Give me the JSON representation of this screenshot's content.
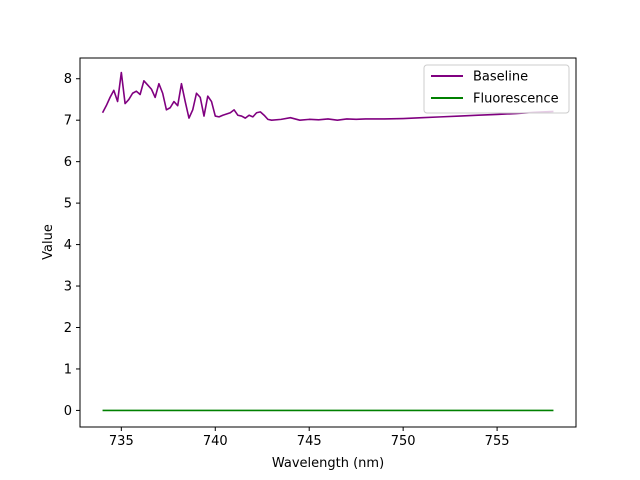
{
  "chart_data": {
    "type": "line",
    "xlabel": "Wavelength (nm)",
    "ylabel": "Value",
    "xlim": [
      732.8,
      759.2
    ],
    "ylim": [
      -0.4,
      8.5
    ],
    "x_ticks": [
      735,
      740,
      745,
      750,
      755
    ],
    "y_ticks": [
      0,
      1,
      2,
      3,
      4,
      5,
      6,
      7,
      8
    ],
    "grid": false,
    "legend_position": "top-right",
    "series": [
      {
        "name": "Baseline",
        "color": "#800080",
        "x": [
          734.0,
          734.2,
          734.4,
          734.6,
          734.8,
          735.0,
          735.2,
          735.4,
          735.6,
          735.8,
          736.0,
          736.2,
          736.4,
          736.6,
          736.8,
          737.0,
          737.2,
          737.4,
          737.6,
          737.8,
          738.0,
          738.2,
          738.4,
          738.6,
          738.8,
          739.0,
          739.2,
          739.4,
          739.6,
          739.8,
          740.0,
          740.2,
          740.4,
          740.6,
          740.8,
          741.0,
          741.2,
          741.4,
          741.6,
          741.8,
          742.0,
          742.2,
          742.4,
          742.6,
          742.8,
          743.0,
          743.5,
          744.0,
          744.5,
          745.0,
          745.5,
          746.0,
          746.5,
          747.0,
          747.5,
          748.0,
          749.0,
          750.0,
          751.0,
          752.0,
          753.0,
          754.0,
          755.0,
          756.0,
          757.0,
          758.0
        ],
        "y": [
          7.18,
          7.35,
          7.55,
          7.72,
          7.45,
          8.15,
          7.4,
          7.5,
          7.65,
          7.7,
          7.62,
          7.95,
          7.85,
          7.75,
          7.55,
          7.88,
          7.65,
          7.25,
          7.3,
          7.45,
          7.35,
          7.88,
          7.45,
          7.05,
          7.25,
          7.65,
          7.55,
          7.1,
          7.58,
          7.45,
          7.1,
          7.08,
          7.12,
          7.15,
          7.18,
          7.25,
          7.12,
          7.1,
          7.05,
          7.12,
          7.08,
          7.18,
          7.2,
          7.12,
          7.02,
          7.0,
          7.02,
          7.06,
          7.0,
          7.02,
          7.01,
          7.03,
          7.0,
          7.03,
          7.02,
          7.03,
          7.03,
          7.04,
          7.06,
          7.08,
          7.1,
          7.12,
          7.14,
          7.16,
          7.19,
          7.21
        ]
      },
      {
        "name": "Fluorescence",
        "color": "#008000",
        "x": [
          734.0,
          758.0
        ],
        "y": [
          0.0,
          0.0
        ]
      }
    ]
  }
}
